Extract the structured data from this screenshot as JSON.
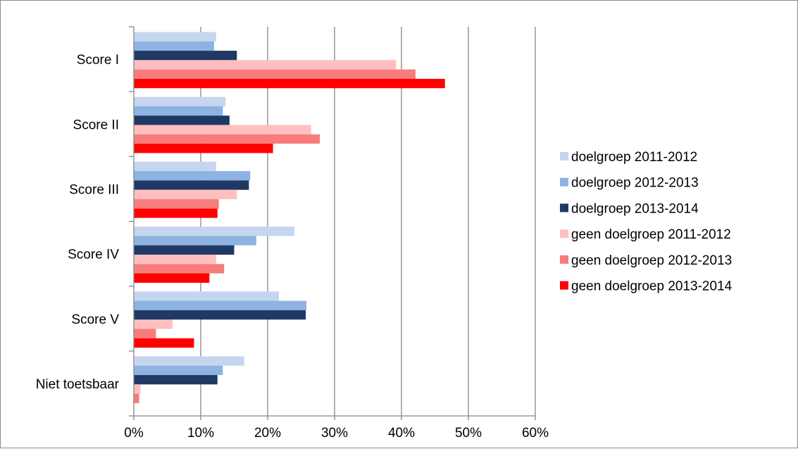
{
  "chart_data": {
    "type": "bar",
    "orientation": "horizontal",
    "categories": [
      "Score I",
      "Score II",
      "Score III",
      "Score IV",
      "Score V",
      "Niet toetsbaar"
    ],
    "xlim": [
      0,
      60
    ],
    "x_ticks": [
      "0%",
      "10%",
      "20%",
      "30%",
      "40%",
      "50%",
      "60%"
    ],
    "grid": "vertical major gridlines",
    "legend_position": "right",
    "series": [
      {
        "name": "doelgroep 2011-2012",
        "color": "#c6d6ee",
        "values": [
          12.3,
          13.7,
          12.3,
          24.0,
          21.7,
          16.5
        ]
      },
      {
        "name": "doelgroep 2012-2013",
        "color": "#8db3e2",
        "values": [
          12.0,
          13.3,
          17.4,
          18.3,
          25.8,
          13.3
        ]
      },
      {
        "name": "doelgroep 2013-2014",
        "color": "#1f3864",
        "values": [
          15.4,
          14.3,
          17.2,
          15.0,
          25.7,
          12.5
        ]
      },
      {
        "name": "geen doelgroep 2011-2012",
        "color": "#ffbfbf",
        "values": [
          39.2,
          26.5,
          15.4,
          12.3,
          5.8,
          1.0
        ]
      },
      {
        "name": "geen doelgroep 2012-2013",
        "color": "#f77c7c",
        "values": [
          42.1,
          27.8,
          12.7,
          13.5,
          3.3,
          0.8
        ]
      },
      {
        "name": "geen doelgroep 2013-2014",
        "color": "#ff0000",
        "values": [
          46.5,
          20.8,
          12.5,
          11.3,
          9.0,
          0
        ]
      }
    ]
  }
}
